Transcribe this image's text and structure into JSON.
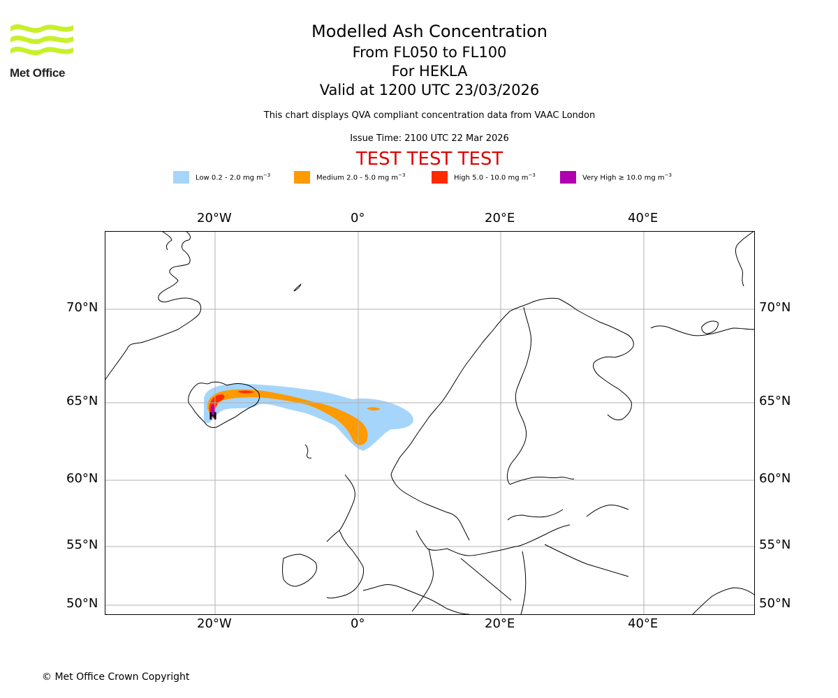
{
  "logo": {
    "text": "Met Office",
    "colors": {
      "waves": "#c8f02a",
      "text": "#222222"
    }
  },
  "header": {
    "title": "Modelled Ash Concentration",
    "level_range": "From FL050 to FL100",
    "volcano": "For HEKLA",
    "valid_time": "Valid at 1200 UTC 23/03/2026",
    "description": "This chart displays QVA compliant concentration data from VAAC London",
    "issue_time": "Issue Time: 2100 UTC 22 Mar 2026",
    "test_banner": "TEST TEST TEST",
    "test_banner_color": "#dd0000"
  },
  "legend": [
    {
      "label": "Low 0.2 - 2.0 mg m",
      "color": "#a6d5fb"
    },
    {
      "label": "Medium 2.0 - 5.0 mg m",
      "color": "#ff9a00"
    },
    {
      "label": "High 5.0 - 10.0 mg m",
      "color": "#ff2a00"
    },
    {
      "label": "Very High ≥ 10.0 mg m",
      "color": "#b000b0"
    }
  ],
  "legend_unit_exponent": "−3",
  "map": {
    "lon_labels_top": [
      "20°W",
      "0°",
      "20°E",
      "40°E"
    ],
    "lon_labels_bottom": [
      "20°W",
      "0°",
      "20°E",
      "40°E"
    ],
    "lat_labels_left": [
      "70°N",
      "65°N",
      "60°N",
      "55°N",
      "50°N"
    ],
    "lat_labels_right": [
      "70°N",
      "65°N",
      "60°N",
      "55°N",
      "50°N"
    ],
    "source_marker": "H",
    "gridline_color": "#b0b0b0"
  },
  "footer": {
    "copyright": "© Met Office Crown Copyright"
  }
}
